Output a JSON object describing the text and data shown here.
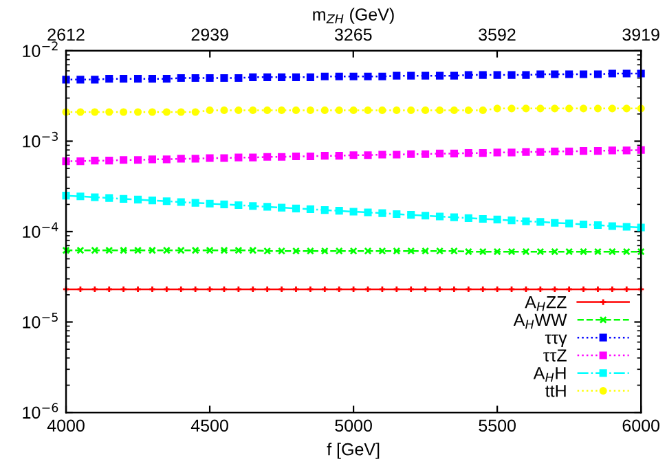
{
  "chart_data": {
    "type": "line",
    "xlabel": "f [GeV]",
    "x2label": "m$_{ZH}$ (GeV)",
    "x": [
      4000,
      4050,
      4100,
      4150,
      4200,
      4250,
      4300,
      4350,
      4400,
      4450,
      4500,
      4550,
      4600,
      4650,
      4700,
      4750,
      4800,
      4850,
      4900,
      4950,
      5000,
      5050,
      5100,
      5150,
      5200,
      5250,
      5300,
      5350,
      5400,
      5450,
      5500,
      5550,
      5600,
      5650,
      5700,
      5750,
      5800,
      5850,
      5900,
      5950,
      6000
    ],
    "xlim": [
      4000,
      6000
    ],
    "xticks": [
      4000,
      4500,
      5000,
      5500,
      6000
    ],
    "x2lim": [
      2612,
      3919
    ],
    "x2ticks": [
      2612,
      2939,
      3265,
      3592,
      3919
    ],
    "log": "y",
    "ylim": [
      1e-06,
      0.01
    ],
    "yticks": [
      {
        "value": 1e-06,
        "label": "10$^{−6}$"
      },
      {
        "value": 1e-05,
        "label": "10$^{−5}$"
      },
      {
        "value": 0.0001,
        "label": "10$^{−4}$"
      },
      {
        "value": 0.001,
        "label": "10$^{−3}$"
      },
      {
        "value": 0.01,
        "label": "10$^{−2}$"
      }
    ],
    "grid": false,
    "legend": "bottom right",
    "series": [
      {
        "name": "A$_{H}$ZZ",
        "color": "#ff0000",
        "marker": "cross",
        "line_style": "solid",
        "values": [
          2.3e-05,
          2.3e-05,
          2.3e-05,
          2.3e-05,
          2.3e-05,
          2.3e-05,
          2.3e-05,
          2.3e-05,
          2.3e-05,
          2.3e-05,
          2.3e-05,
          2.3e-05,
          2.3e-05,
          2.3e-05,
          2.3e-05,
          2.3e-05,
          2.3e-05,
          2.3e-05,
          2.3e-05,
          2.3e-05,
          2.3e-05,
          2.3e-05,
          2.3e-05,
          2.3e-05,
          2.3e-05,
          2.3e-05,
          2.3e-05,
          2.3e-05,
          2.3e-05,
          2.3e-05,
          2.3e-05,
          2.3e-05,
          2.3e-05,
          2.3e-05,
          2.3e-05,
          2.3e-05,
          2.3e-05,
          2.3e-05,
          2.3e-05,
          2.3e-05,
          2.3e-05
        ]
      },
      {
        "name": "A$_{H}$WW",
        "color": "#00ff00",
        "marker": "x",
        "line_style": "dashed",
        "values": [
          6.2e-05,
          6.2e-05,
          6.2e-05,
          6.2e-05,
          6.2e-05,
          6.2e-05,
          6.2e-05,
          6.2e-05,
          6.2e-05,
          6.2e-05,
          6.2e-05,
          6.2e-05,
          6.2e-05,
          6.2e-05,
          6.1e-05,
          6.1e-05,
          6.1e-05,
          6.1e-05,
          6.1e-05,
          6.1e-05,
          6.1e-05,
          6.1e-05,
          6.1e-05,
          6.1e-05,
          6.1e-05,
          6.1e-05,
          6.1e-05,
          6.1e-05,
          6e-05,
          6e-05,
          6e-05,
          6e-05,
          6e-05,
          6e-05,
          6e-05,
          6e-05,
          6e-05,
          6e-05,
          6e-05,
          6e-05,
          6e-05
        ]
      },
      {
        "name": "ττγ",
        "color": "#0000ff",
        "marker": "square",
        "line_style": "dotted",
        "values": [
          0.0048,
          0.0048,
          0.0048,
          0.0049,
          0.0049,
          0.0049,
          0.0049,
          0.0049,
          0.005,
          0.005,
          0.005,
          0.005,
          0.005,
          0.0051,
          0.0051,
          0.0051,
          0.0051,
          0.0051,
          0.0052,
          0.0052,
          0.0052,
          0.0052,
          0.0052,
          0.0053,
          0.0053,
          0.0053,
          0.0053,
          0.0053,
          0.0054,
          0.0054,
          0.0054,
          0.0054,
          0.0054,
          0.0055,
          0.0055,
          0.0055,
          0.0055,
          0.0055,
          0.0056,
          0.0056,
          0.0056
        ]
      },
      {
        "name": "ττZ",
        "color": "#ff00ff",
        "marker": "square",
        "line_style": "dotted",
        "values": [
          0.0006,
          0.0006,
          0.00061,
          0.00061,
          0.00062,
          0.00062,
          0.00063,
          0.00063,
          0.00064,
          0.00064,
          0.00065,
          0.00065,
          0.00066,
          0.00066,
          0.00067,
          0.00067,
          0.00068,
          0.00068,
          0.00069,
          0.00069,
          0.0007,
          0.0007,
          0.00071,
          0.00071,
          0.00072,
          0.00072,
          0.00073,
          0.00073,
          0.00074,
          0.00074,
          0.00075,
          0.00075,
          0.00076,
          0.00076,
          0.00077,
          0.00077,
          0.00078,
          0.00078,
          0.00079,
          0.00079,
          0.0008
        ]
      },
      {
        "name": "A$_{H}$H",
        "color": "#00ffff",
        "marker": "square",
        "line_style": "dashdot",
        "values": [
          0.00025,
          0.000245,
          0.00024,
          0.000235,
          0.00023,
          0.000226,
          0.000221,
          0.000217,
          0.000212,
          0.000208,
          0.000204,
          0.0002,
          0.000196,
          0.000192,
          0.000188,
          0.000184,
          0.00018,
          0.000177,
          0.000173,
          0.00017,
          0.000166,
          0.000163,
          0.00016,
          0.000156,
          0.000153,
          0.00015,
          0.000147,
          0.000144,
          0.000141,
          0.000138,
          0.000136,
          0.000133,
          0.00013,
          0.000128,
          0.000125,
          0.000123,
          0.00012,
          0.000118,
          0.000115,
          0.000113,
          0.000111
        ]
      },
      {
        "name": "ttH",
        "color": "#ffff00",
        "marker": "circle",
        "line_style": "dotted",
        "values": [
          0.0021,
          0.0021,
          0.0021,
          0.0021,
          0.0021,
          0.0021,
          0.0021,
          0.0021,
          0.0021,
          0.0021,
          0.0022,
          0.0022,
          0.0022,
          0.0022,
          0.0022,
          0.0022,
          0.0022,
          0.0022,
          0.0022,
          0.0022,
          0.0022,
          0.0022,
          0.0022,
          0.0022,
          0.0022,
          0.0022,
          0.0022,
          0.0022,
          0.0022,
          0.0022,
          0.0023,
          0.0023,
          0.0023,
          0.0023,
          0.0023,
          0.0023,
          0.0023,
          0.0023,
          0.0023,
          0.0023,
          0.0023
        ]
      }
    ]
  }
}
